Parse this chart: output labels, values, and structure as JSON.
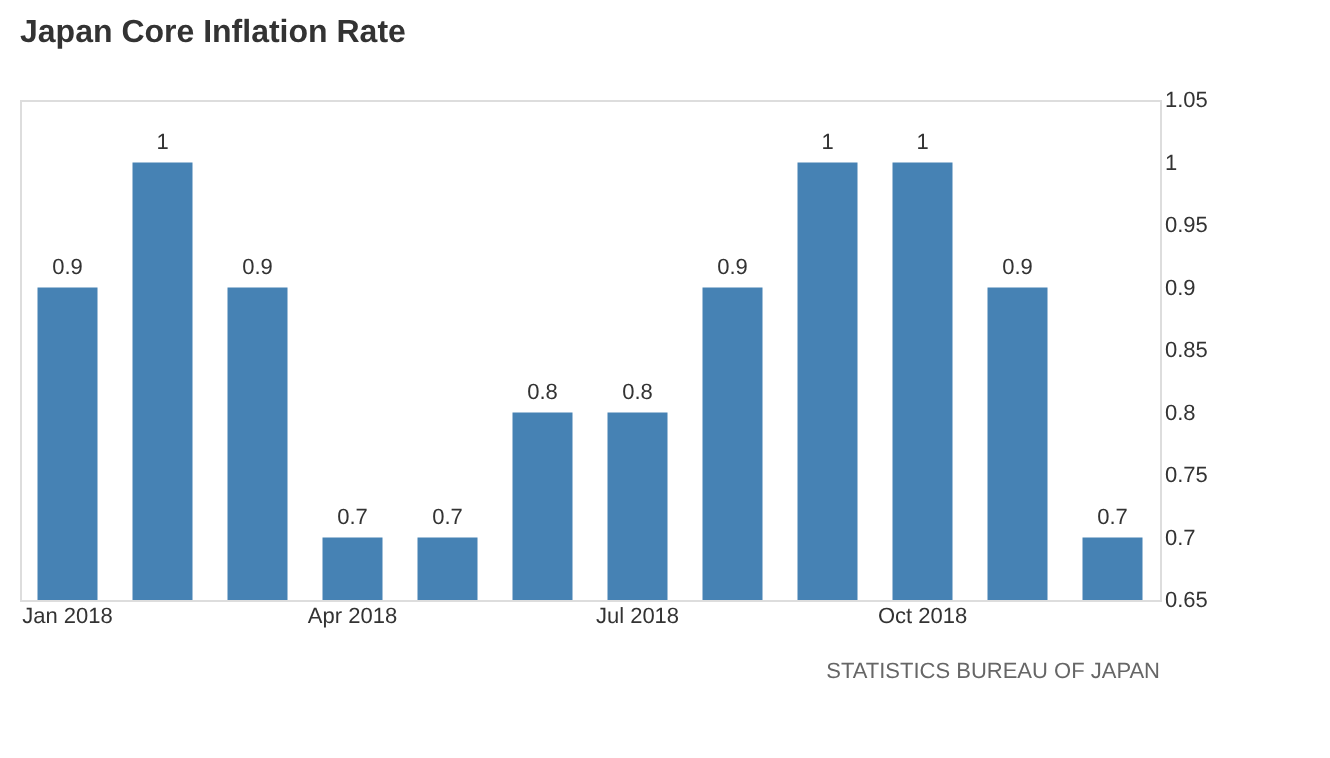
{
  "chart_data": {
    "type": "bar",
    "title": "Japan Core Inflation Rate",
    "categories": [
      "Jan 2018",
      null,
      null,
      "Apr 2018",
      null,
      null,
      "Jul 2018",
      null,
      null,
      "Oct 2018",
      null,
      null
    ],
    "values": [
      0.9,
      1,
      0.9,
      0.7,
      0.7,
      0.8,
      0.8,
      0.9,
      1,
      1,
      0.9,
      0.7
    ],
    "color": "#4682b4",
    "ylim": [
      0.65,
      1.05
    ],
    "yticks": [
      0.65,
      0.7,
      0.75,
      0.8,
      0.85,
      0.9,
      0.95,
      1,
      1.05
    ],
    "grid": false,
    "data_labels": true,
    "annotations": [
      "STATISTICS BUREAU OF JAPAN"
    ]
  }
}
